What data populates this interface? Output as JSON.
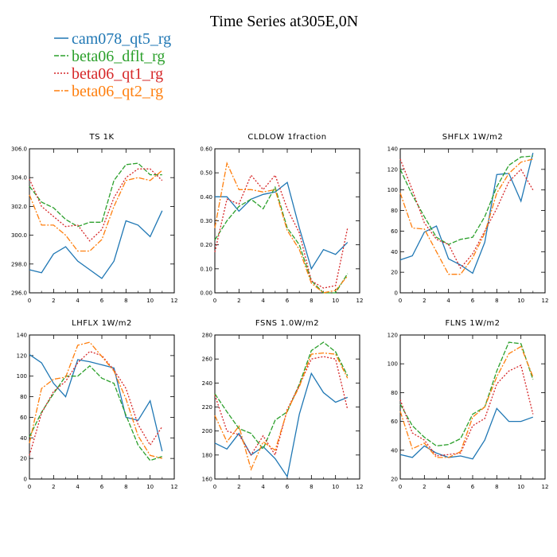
{
  "figure": {
    "title": "Time Series at305E,0N"
  },
  "legend": [
    {
      "name": "cam078_qt5_rg",
      "color": "#1f77b4",
      "dash": "solid"
    },
    {
      "name": "beta06_dflt_rg",
      "color": "#2ca02c",
      "dash": "dashed"
    },
    {
      "name": "beta06_qt1_rg",
      "color": "#d62728",
      "dash": "dotted"
    },
    {
      "name": "beta06_qt2_rg",
      "color": "#ff7f0e",
      "dash": "dashdot"
    }
  ],
  "chart_data": [
    {
      "type": "line",
      "title": "TS   1K",
      "x": [
        0,
        1,
        2,
        3,
        4,
        5,
        6,
        7,
        8,
        9,
        10,
        11
      ],
      "xlim": [
        0,
        12
      ],
      "xticks": [
        0,
        2,
        4,
        6,
        8,
        10,
        12
      ],
      "ylim": [
        296,
        306
      ],
      "yticks": [
        296,
        298,
        300,
        302,
        304,
        306
      ],
      "ytick_labels": [
        "296.0",
        "298.0",
        "300.0",
        "302.0",
        "304.0",
        "306.0"
      ],
      "series": [
        {
          "name": "cam078_qt5_rg",
          "values": [
            297.6,
            297.4,
            298.7,
            299.2,
            298.2,
            297.6,
            297.0,
            298.2,
            301.0,
            300.7,
            299.9,
            301.7
          ]
        },
        {
          "name": "beta06_dflt_rg",
          "values": [
            303.4,
            302.3,
            301.9,
            301.1,
            300.6,
            300.9,
            300.9,
            303.8,
            304.9,
            305.0,
            304.2,
            304.2
          ]
        },
        {
          "name": "beta06_qt1_rg",
          "values": [
            303.9,
            302.0,
            301.3,
            300.6,
            300.7,
            299.6,
            300.4,
            302.6,
            304.0,
            304.6,
            304.6,
            303.8
          ]
        },
        {
          "name": "beta06_qt2_rg",
          "values": [
            302.8,
            300.7,
            300.7,
            300.0,
            298.9,
            298.9,
            299.7,
            302.0,
            303.8,
            304.0,
            303.8,
            304.5
          ]
        }
      ]
    },
    {
      "type": "line",
      "title": "CLDLOW   1fraction",
      "x": [
        0,
        1,
        2,
        3,
        4,
        5,
        6,
        7,
        8,
        9,
        10,
        11
      ],
      "xlim": [
        0,
        12
      ],
      "xticks": [
        0,
        2,
        4,
        6,
        8,
        10,
        12
      ],
      "ylim": [
        0,
        0.6
      ],
      "yticks": [
        0,
        0.1,
        0.2,
        0.3,
        0.4,
        0.5,
        0.6
      ],
      "ytick_labels": [
        "0.00",
        "0.10",
        "0.20",
        "0.30",
        "0.40",
        "0.50",
        "0.60"
      ],
      "series": [
        {
          "name": "cam078_qt5_rg",
          "values": [
            0.4,
            0.4,
            0.34,
            0.39,
            0.41,
            0.42,
            0.46,
            0.27,
            0.1,
            0.18,
            0.16,
            0.21
          ]
        },
        {
          "name": "beta06_dflt_rg",
          "values": [
            0.22,
            0.3,
            0.36,
            0.39,
            0.35,
            0.44,
            0.27,
            0.2,
            0.05,
            0.0,
            0.0,
            0.08
          ]
        },
        {
          "name": "beta06_qt1_rg",
          "values": [
            0.17,
            0.39,
            0.37,
            0.49,
            0.43,
            0.49,
            0.35,
            0.25,
            0.05,
            0.02,
            0.03,
            0.27
          ]
        },
        {
          "name": "beta06_qt2_rg",
          "values": [
            0.27,
            0.54,
            0.43,
            0.43,
            0.42,
            0.43,
            0.26,
            0.18,
            0.04,
            0.0,
            0.01,
            0.07
          ]
        }
      ]
    },
    {
      "type": "line",
      "title": "SHFLX   1W/m2",
      "x": [
        0,
        1,
        2,
        3,
        4,
        5,
        6,
        7,
        8,
        9,
        10,
        11
      ],
      "xlim": [
        0,
        12
      ],
      "xticks": [
        0,
        2,
        4,
        6,
        8,
        10,
        12
      ],
      "ylim": [
        0,
        140
      ],
      "yticks": [
        0,
        20,
        40,
        60,
        80,
        100,
        120,
        140
      ],
      "ytick_labels": [
        "0",
        "20",
        "40",
        "60",
        "80",
        "100",
        "120",
        "140"
      ],
      "series": [
        {
          "name": "cam078_qt5_rg",
          "values": [
            32,
            36,
            59,
            65,
            33,
            27,
            19,
            49,
            115,
            116,
            89,
            136
          ]
        },
        {
          "name": "beta06_dflt_rg",
          "values": [
            120,
            95,
            74,
            54,
            47,
            52,
            54,
            74,
            103,
            124,
            132,
            133
          ]
        },
        {
          "name": "beta06_qt1_rg",
          "values": [
            130,
            100,
            68,
            52,
            47,
            24,
            38,
            60,
            82,
            108,
            120,
            100
          ]
        },
        {
          "name": "beta06_qt2_rg",
          "values": [
            97,
            63,
            62,
            40,
            18,
            18,
            34,
            58,
            97,
            116,
            127,
            130
          ]
        }
      ]
    },
    {
      "type": "line",
      "title": "LHFLX   1W/m2",
      "x": [
        0,
        1,
        2,
        3,
        4,
        5,
        6,
        7,
        8,
        9,
        10,
        11
      ],
      "xlim": [
        0,
        12
      ],
      "xticks": [
        0,
        2,
        4,
        6,
        8,
        10,
        12
      ],
      "ylim": [
        0,
        140
      ],
      "yticks": [
        0,
        20,
        40,
        60,
        80,
        100,
        120,
        140
      ],
      "ytick_labels": [
        "0",
        "20",
        "40",
        "60",
        "80",
        "100",
        "120",
        "140"
      ],
      "series": [
        {
          "name": "cam078_qt5_rg",
          "values": [
            121,
            113,
            93,
            80,
            116,
            114,
            111,
            108,
            60,
            57,
            76,
            27
          ]
        },
        {
          "name": "beta06_dflt_rg",
          "values": [
            41,
            65,
            83,
            100,
            100,
            110,
            98,
            93,
            62,
            33,
            18,
            22
          ]
        },
        {
          "name": "beta06_qt1_rg",
          "values": [
            23,
            64,
            85,
            95,
            113,
            124,
            120,
            106,
            88,
            53,
            33,
            51
          ]
        },
        {
          "name": "beta06_qt2_rg",
          "values": [
            35,
            88,
            97,
            99,
            130,
            133,
            119,
            105,
            78,
            42,
            23,
            20
          ]
        }
      ]
    },
    {
      "type": "line",
      "title": "FSNS   1.0W/m2",
      "x": [
        0,
        1,
        2,
        3,
        4,
        5,
        6,
        7,
        8,
        9,
        10,
        11
      ],
      "xlim": [
        0,
        12
      ],
      "xticks": [
        0,
        2,
        4,
        6,
        8,
        10,
        12
      ],
      "ylim": [
        160,
        280
      ],
      "yticks": [
        160,
        180,
        200,
        220,
        240,
        260,
        280
      ],
      "ytick_labels": [
        "160",
        "180",
        "200",
        "220",
        "240",
        "260",
        "280"
      ],
      "series": [
        {
          "name": "cam078_qt5_rg",
          "values": [
            190,
            185,
            198,
            180,
            187,
            177,
            162,
            214,
            248,
            232,
            224,
            228
          ]
        },
        {
          "name": "beta06_dflt_rg",
          "values": [
            231,
            216,
            202,
            198,
            185,
            209,
            216,
            239,
            267,
            274,
            266,
            246
          ]
        },
        {
          "name": "beta06_qt1_rg",
          "values": [
            230,
            200,
            197,
            180,
            196,
            180,
            218,
            238,
            260,
            262,
            260,
            218
          ]
        },
        {
          "name": "beta06_qt2_rg",
          "values": [
            213,
            191,
            204,
            168,
            191,
            184,
            217,
            237,
            264,
            265,
            264,
            244
          ]
        }
      ]
    },
    {
      "type": "line",
      "title": "FLNS   1W/m2",
      "x": [
        0,
        1,
        2,
        3,
        4,
        5,
        6,
        7,
        8,
        9,
        10,
        11
      ],
      "xlim": [
        0,
        12
      ],
      "xticks": [
        0,
        2,
        4,
        6,
        8,
        10,
        12
      ],
      "ylim": [
        20,
        120
      ],
      "yticks": [
        20,
        40,
        60,
        80,
        100,
        120
      ],
      "ytick_labels": [
        "20",
        "40",
        "60",
        "80",
        "100",
        "120"
      ],
      "series": [
        {
          "name": "cam078_qt5_rg",
          "values": [
            37,
            35,
            43,
            38,
            35,
            36,
            34,
            47,
            69,
            60,
            60,
            63
          ]
        },
        {
          "name": "beta06_dflt_rg",
          "values": [
            72,
            57,
            49,
            43,
            44,
            48,
            65,
            70,
            95,
            115,
            114,
            89
          ]
        },
        {
          "name": "beta06_qt1_rg",
          "values": [
            75,
            52,
            47,
            36,
            37,
            38,
            57,
            62,
            86,
            95,
            99,
            65
          ]
        },
        {
          "name": "beta06_qt2_rg",
          "values": [
            67,
            41,
            45,
            35,
            35,
            39,
            63,
            70,
            91,
            107,
            112,
            91
          ]
        }
      ]
    }
  ]
}
